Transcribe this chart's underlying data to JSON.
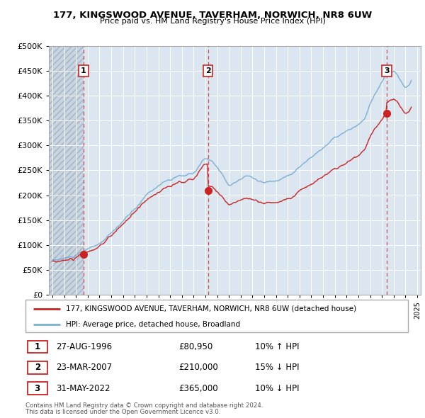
{
  "title1": "177, KINGSWOOD AVENUE, TAVERHAM, NORWICH, NR8 6UW",
  "title2": "Price paid vs. HM Land Registry's House Price Index (HPI)",
  "background_color": "#ffffff",
  "plot_bg_color": "#dce6f0",
  "grid_color": "#ffffff",
  "hpi_color": "#7bafd4",
  "price_color": "#cc2222",
  "vline_color": "#cc3333",
  "ylim": [
    0,
    500000
  ],
  "yticks": [
    0,
    50000,
    100000,
    150000,
    200000,
    250000,
    300000,
    350000,
    400000,
    450000,
    500000
  ],
  "ytick_labels": [
    "£0",
    "£50K",
    "£100K",
    "£150K",
    "£200K",
    "£250K",
    "£300K",
    "£350K",
    "£400K",
    "£450K",
    "£500K"
  ],
  "xmin": 1993.7,
  "xmax": 2025.3,
  "xticks": [
    1994,
    1995,
    1996,
    1997,
    1998,
    1999,
    2000,
    2001,
    2002,
    2003,
    2004,
    2005,
    2006,
    2007,
    2008,
    2009,
    2010,
    2011,
    2012,
    2013,
    2014,
    2015,
    2016,
    2017,
    2018,
    2019,
    2020,
    2021,
    2022,
    2023,
    2024,
    2025
  ],
  "sale_events": [
    {
      "year": 1996.65,
      "price": 80950,
      "label": "1"
    },
    {
      "year": 2007.22,
      "price": 210000,
      "label": "2"
    },
    {
      "year": 2022.41,
      "price": 365000,
      "label": "3"
    }
  ],
  "legend_line1": "177, KINGSWOOD AVENUE, TAVERHAM, NORWICH, NR8 6UW (detached house)",
  "legend_line2": "HPI: Average price, detached house, Broadland",
  "table_data": [
    {
      "num": "1",
      "date": "27-AUG-1996",
      "price": "£80,950",
      "hpi": "10% ↑ HPI"
    },
    {
      "num": "2",
      "date": "23-MAR-2007",
      "price": "£210,000",
      "hpi": "15% ↓ HPI"
    },
    {
      "num": "3",
      "date": "31-MAY-2022",
      "price": "£365,000",
      "hpi": "10% ↓ HPI"
    }
  ],
  "footnote1": "Contains HM Land Registry data © Crown copyright and database right 2024.",
  "footnote2": "This data is licensed under the Open Government Licence v3.0."
}
